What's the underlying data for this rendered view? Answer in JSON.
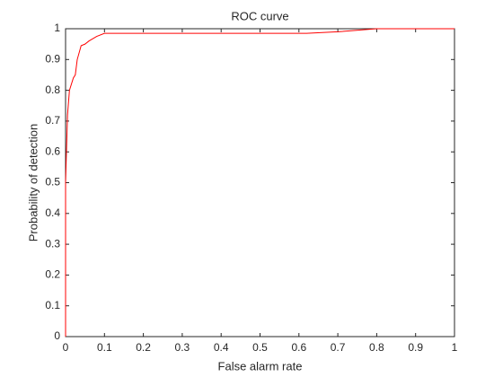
{
  "chart_data": {
    "type": "line",
    "title": "ROC curve",
    "x_label": "False alarm rate",
    "y_label": "Probability of detection",
    "xlim": [
      0,
      1
    ],
    "ylim": [
      0,
      1
    ],
    "xticks": [
      0,
      0.1,
      0.2,
      0.3,
      0.4,
      0.5,
      0.6,
      0.7,
      0.8,
      0.9,
      1
    ],
    "yticks": [
      0,
      0.1,
      0.2,
      0.3,
      0.4,
      0.5,
      0.6,
      0.7,
      0.8,
      0.9,
      1
    ],
    "grid": false,
    "series": [
      {
        "color": "#ff0000",
        "x": [
          0,
          0,
          0.005,
          0.01,
          0.02,
          0.025,
          0.03,
          0.04,
          0.05,
          0.06,
          0.08,
          0.1,
          0.62,
          0.7,
          0.8,
          1
        ],
        "values": [
          0,
          0.5,
          0.72,
          0.8,
          0.84,
          0.85,
          0.9,
          0.945,
          0.95,
          0.96,
          0.975,
          0.985,
          0.985,
          0.99,
          1,
          1
        ]
      }
    ]
  }
}
